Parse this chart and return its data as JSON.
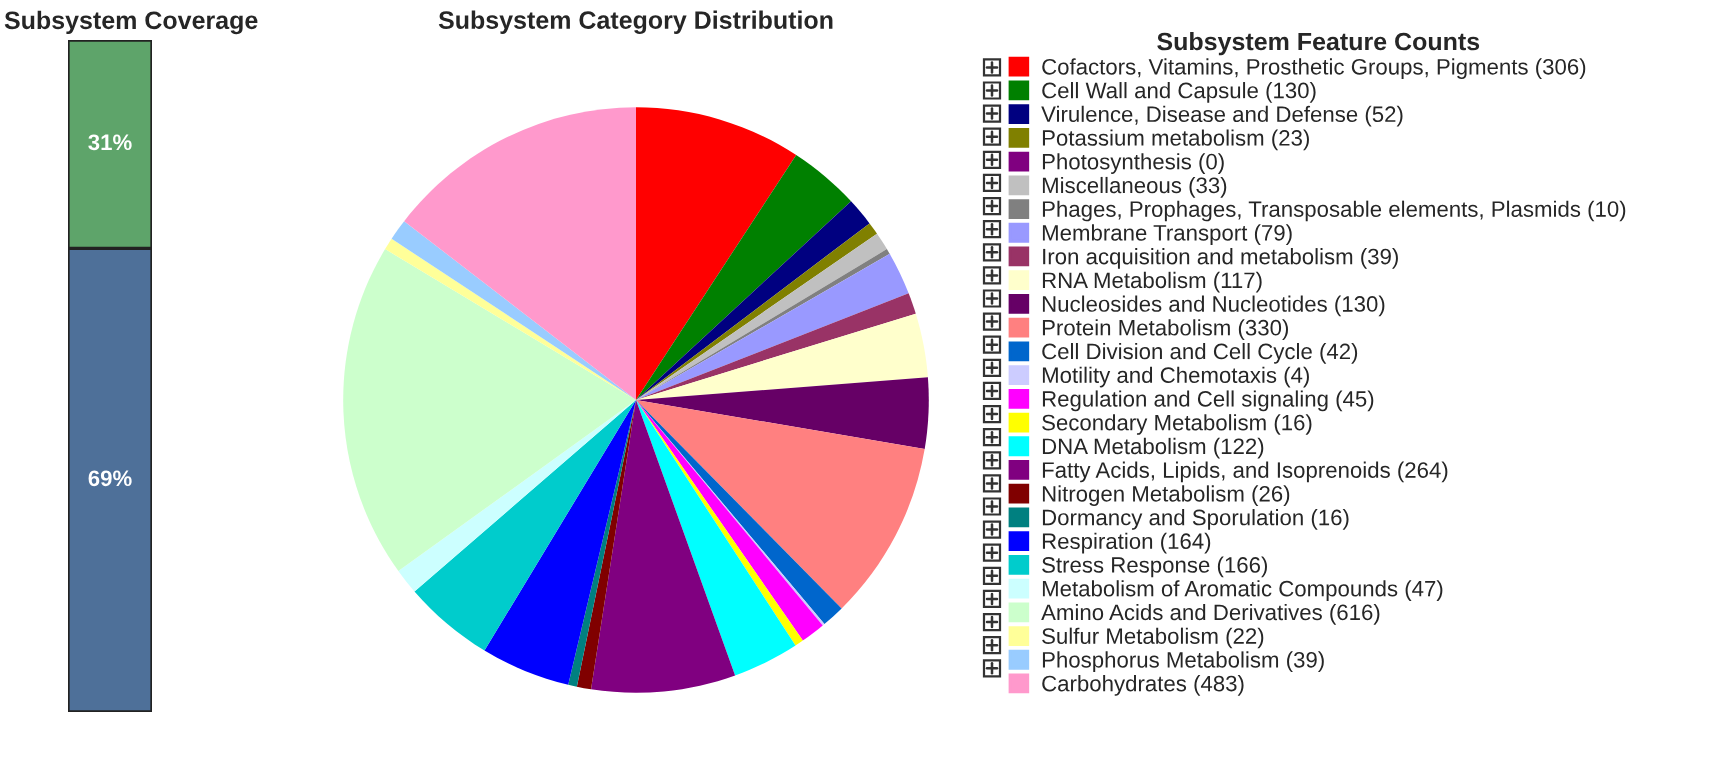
{
  "chart_data": [
    {
      "type": "bar",
      "title": "Subsystem Coverage",
      "categories": [
        null
      ],
      "stacked": true,
      "tick_labels": false,
      "series": [
        {
          "color": "#4e7099",
          "values": [
            69
          ],
          "value_labels": [
            "69%"
          ]
        },
        {
          "color": "#5ea46a",
          "values": [
            31
          ],
          "value_labels": [
            "31%"
          ]
        }
      ]
    },
    {
      "type": "pie",
      "title": "Subsystem Category Distribution",
      "legend_title": "Subsystem Feature Counts",
      "legend": "right",
      "categories": [
        "Cofactors, Vitamins, Prosthetic Groups, Pigments (306)",
        "Cell Wall and Capsule (130)",
        "Virulence, Disease and Defense (52)",
        "Potassium metabolism (23)",
        "Photosynthesis (0)",
        "Miscellaneous (33)",
        "Phages, Prophages, Transposable elements, Plasmids (10)",
        "Membrane Transport (79)",
        "Iron acquisition and metabolism (39)",
        "RNA Metabolism (117)",
        "Nucleosides and Nucleotides (130)",
        "Protein Metabolism (330)",
        "Cell Division and Cell Cycle (42)",
        "Motility and Chemotaxis (4)",
        "Regulation and Cell signaling (45)",
        "Secondary Metabolism (16)",
        "DNA Metabolism (122)",
        "Fatty Acids, Lipids, and Isoprenoids (264)",
        "Nitrogen Metabolism (26)",
        "Dormancy and Sporulation (16)",
        "Respiration (164)",
        "Stress Response (166)",
        "Metabolism of Aromatic Compounds (47)",
        "Amino Acids and Derivatives (616)",
        "Sulfur Metabolism (22)",
        "Phosphorus Metabolism (39)",
        "Carbohydrates (483)"
      ],
      "values": [
        306,
        130,
        52,
        23,
        0,
        33,
        10,
        79,
        39,
        117,
        130,
        330,
        42,
        4,
        45,
        16,
        122,
        264,
        26,
        16,
        164,
        166,
        47,
        616,
        22,
        39,
        483
      ],
      "colors": [
        "#ff0000",
        "#008000",
        "#000080",
        "#808000",
        "#800080",
        "#c0c0c0",
        "#808080",
        "#9999ff",
        "#993366",
        "#ffffcc",
        "#660066",
        "#ff8080",
        "#0066cc",
        "#ccccff",
        "#ff00ff",
        "#ffff00",
        "#00ffff",
        "#800080",
        "#800000",
        "#008080",
        "#0000ff",
        "#00cccc",
        "#ccffff",
        "#ccffcc",
        "#ffff99",
        "#99ccff",
        "#ff99cc"
      ]
    }
  ]
}
